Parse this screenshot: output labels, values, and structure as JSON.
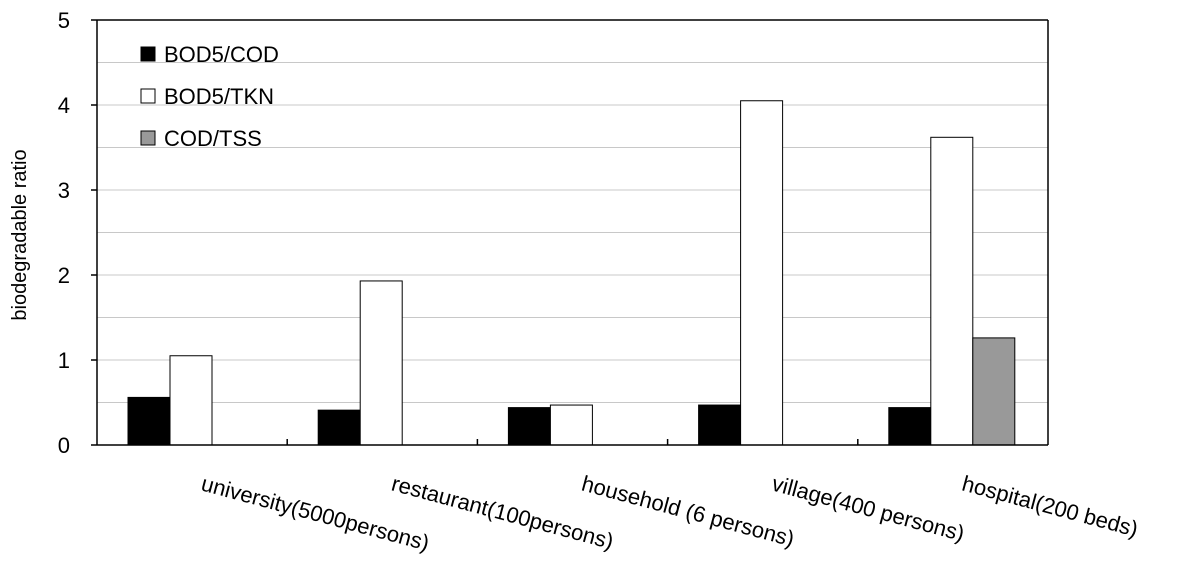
{
  "chart_data": {
    "type": "bar",
    "ylabel": "biodegradable ratio",
    "xlabel": "",
    "ylim": [
      0,
      5
    ],
    "yticks": [
      "0",
      "1",
      "2",
      "3",
      "4",
      "5"
    ],
    "grid": "horizontal, every 0.5",
    "legend_position": "top-left",
    "categories": [
      "university(5000persons)",
      "restaurant(100persons)",
      "household (6 persons)",
      "village(400 persons)",
      "hospital(200 beds)"
    ],
    "series": [
      {
        "name": "BOD5/COD",
        "color": "#000000",
        "values": [
          0.56,
          0.41,
          0.44,
          0.47,
          0.44
        ]
      },
      {
        "name": "BOD5/TKN",
        "color": "#ffffff",
        "values": [
          1.05,
          1.93,
          0.47,
          4.05,
          3.62
        ]
      },
      {
        "name": "COD/TSS",
        "color": "#999999",
        "values": [
          null,
          null,
          null,
          null,
          1.26
        ]
      }
    ]
  }
}
